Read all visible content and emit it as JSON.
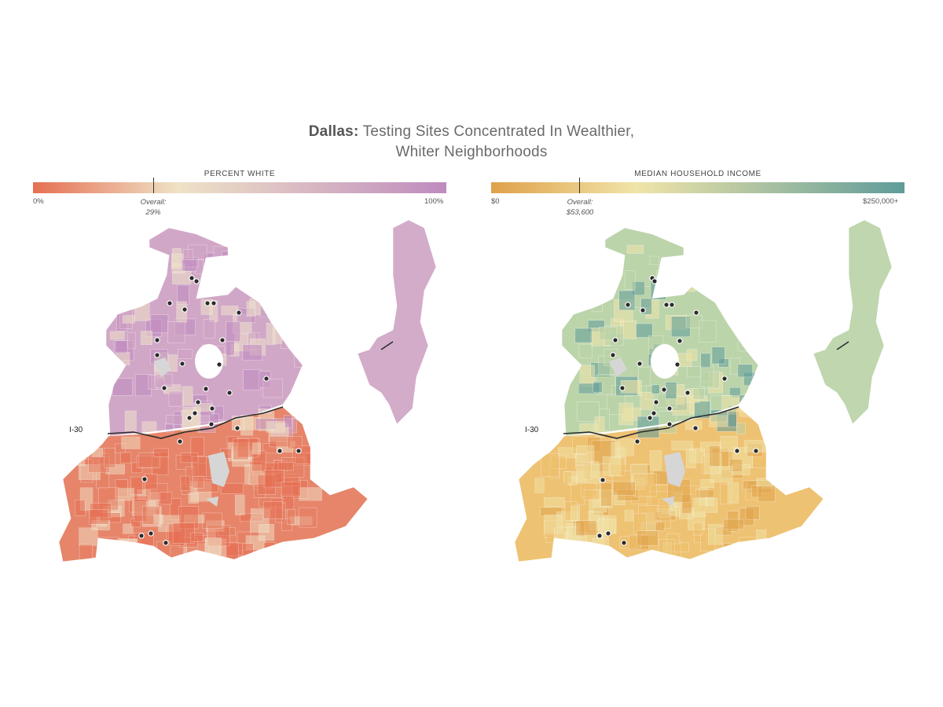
{
  "title": {
    "bold": "Dallas:",
    "rest": " Testing Sites Concentrated In Wealthier,",
    "line2": "Whiter Neighborhoods"
  },
  "maps": [
    {
      "id": "white",
      "legend_title": "PERCENT WHITE",
      "min_label": "0%",
      "max_label": "100%",
      "overall_label": "Overall:",
      "overall_value": "29%",
      "overall_fraction": 0.29,
      "colors": {
        "low": "#e66f52",
        "mid": "#efe2c6",
        "high": "#bf8bbf"
      },
      "region_color_north": "#cfa3c4",
      "region_color_south": "#e57f62",
      "highway_label": "I-30"
    },
    {
      "id": "income",
      "legend_title": "MEDIAN HOUSEHOLD INCOME",
      "min_label": "$0",
      "max_label": "$250,000+",
      "overall_label": "Overall:",
      "overall_value": "$53,600",
      "overall_fraction": 0.214,
      "colors": {
        "low": "#e0a14a",
        "mid": "#f0e4a8",
        "high": "#5f9c9a"
      },
      "region_color_north": "#b9d2a6",
      "region_color_south": "#eebf6c",
      "highway_label": "I-30"
    }
  ],
  "testing_site_color": "#2b2b2b"
}
